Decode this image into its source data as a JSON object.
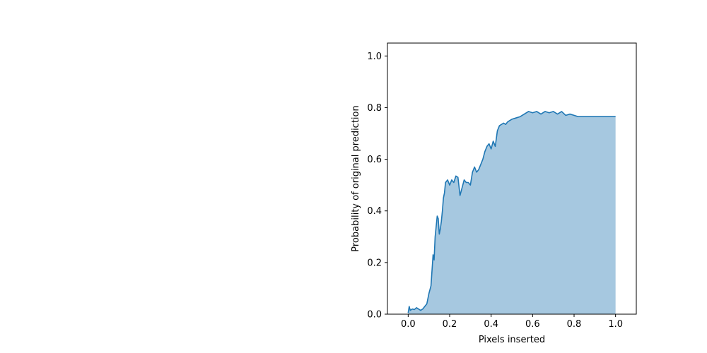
{
  "chart_data": {
    "type": "area",
    "title": "",
    "xlabel": "Pixels inserted",
    "ylabel": "Probability of original prediction",
    "xlim": [
      -0.1,
      1.1
    ],
    "ylim": [
      0.0,
      1.05
    ],
    "xticks": [
      0.0,
      0.2,
      0.4,
      0.6,
      0.8,
      1.0
    ],
    "yticks": [
      0.0,
      0.2,
      0.4,
      0.6,
      0.8,
      1.0
    ],
    "xtick_labels": [
      "0.0",
      "0.2",
      "0.4",
      "0.6",
      "0.8",
      "1.0"
    ],
    "ytick_labels": [
      "0.0",
      "0.2",
      "0.4",
      "0.6",
      "0.8",
      "1.0"
    ],
    "grid": false,
    "legend": "none",
    "line_color": "#1f77b4",
    "fill_color": "#a6c8e0",
    "series": [
      {
        "x": [
          0.0,
          0.005,
          0.01,
          0.02,
          0.03,
          0.04,
          0.05,
          0.06,
          0.07,
          0.08,
          0.09,
          0.1,
          0.11,
          0.12,
          0.125,
          0.13,
          0.135,
          0.14,
          0.145,
          0.15,
          0.155,
          0.16,
          0.165,
          0.17,
          0.175,
          0.18,
          0.19,
          0.2,
          0.21,
          0.22,
          0.23,
          0.24,
          0.25,
          0.26,
          0.27,
          0.28,
          0.29,
          0.3,
          0.31,
          0.32,
          0.33,
          0.34,
          0.35,
          0.36,
          0.37,
          0.38,
          0.39,
          0.4,
          0.41,
          0.42,
          0.43,
          0.44,
          0.45,
          0.46,
          0.47,
          0.48,
          0.49,
          0.5,
          0.52,
          0.54,
          0.56,
          0.58,
          0.6,
          0.62,
          0.64,
          0.66,
          0.68,
          0.7,
          0.72,
          0.74,
          0.76,
          0.78,
          0.8,
          0.82,
          0.85,
          0.9,
          0.95,
          1.0
        ],
        "y": [
          0.005,
          0.03,
          0.015,
          0.02,
          0.018,
          0.025,
          0.02,
          0.015,
          0.02,
          0.03,
          0.04,
          0.08,
          0.11,
          0.23,
          0.21,
          0.3,
          0.34,
          0.38,
          0.37,
          0.31,
          0.33,
          0.36,
          0.4,
          0.45,
          0.47,
          0.51,
          0.52,
          0.5,
          0.52,
          0.51,
          0.535,
          0.53,
          0.46,
          0.49,
          0.52,
          0.51,
          0.51,
          0.5,
          0.55,
          0.57,
          0.55,
          0.56,
          0.58,
          0.6,
          0.63,
          0.65,
          0.66,
          0.64,
          0.67,
          0.65,
          0.71,
          0.73,
          0.735,
          0.74,
          0.735,
          0.745,
          0.75,
          0.755,
          0.76,
          0.765,
          0.775,
          0.785,
          0.78,
          0.785,
          0.775,
          0.785,
          0.78,
          0.785,
          0.775,
          0.785,
          0.77,
          0.775,
          0.77,
          0.765,
          0.765,
          0.765,
          0.765,
          0.765
        ]
      }
    ]
  }
}
